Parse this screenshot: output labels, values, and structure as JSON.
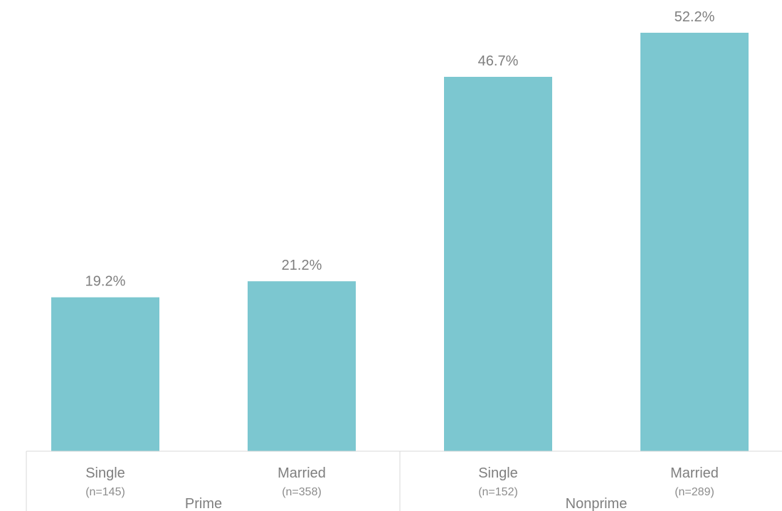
{
  "chart_data": {
    "type": "bar",
    "categories": [
      "Single",
      "Married",
      "Single",
      "Married"
    ],
    "sample_sizes": [
      "(n=145)",
      "(n=358)",
      "(n=152)",
      "(n=289)"
    ],
    "groups": [
      {
        "label": "Prime",
        "categories": [
          0,
          1
        ]
      },
      {
        "label": "Nonprime",
        "categories": [
          2,
          3
        ]
      }
    ],
    "values": [
      19.2,
      21.2,
      46.7,
      52.2
    ],
    "data_labels": [
      "19.2%",
      "21.2%",
      "46.7%",
      "52.2%"
    ],
    "ylim": [
      0,
      55
    ],
    "grid": false,
    "legend": "none",
    "bar_color": "#7cc7d0"
  }
}
